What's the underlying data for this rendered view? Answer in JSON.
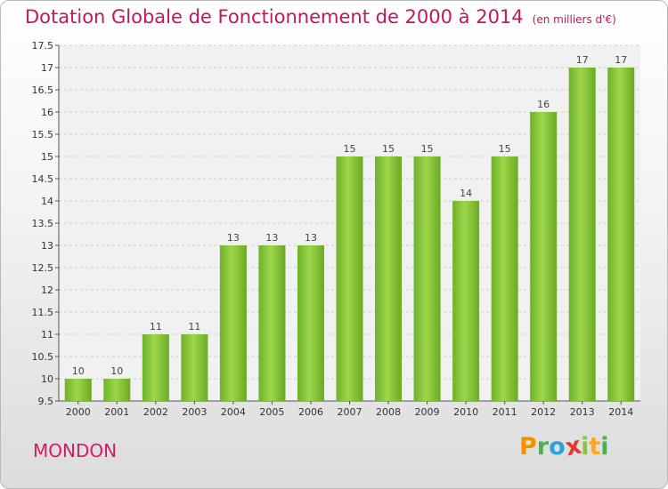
{
  "chart_data": {
    "type": "bar",
    "title": "Dotation Globale de Fonctionnement de 2000 à 2014",
    "subtitle": "(en milliers d'€)",
    "categories": [
      "2000",
      "2001",
      "2002",
      "2003",
      "2004",
      "2005",
      "2006",
      "2007",
      "2008",
      "2009",
      "2010",
      "2011",
      "2012",
      "2013",
      "2014"
    ],
    "values": [
      10,
      10,
      11,
      11,
      13,
      13,
      13,
      15,
      15,
      15,
      14,
      15,
      16,
      17,
      17
    ],
    "data_labels": [
      "10",
      "10",
      "11",
      "11",
      "13",
      "13",
      "13",
      "15",
      "15",
      "15",
      "14",
      "15",
      "16",
      "17",
      "17"
    ],
    "ylim": [
      9.5,
      17.5
    ],
    "yticks": [
      "9.5",
      "10",
      "10.5",
      "11",
      "11.5",
      "12",
      "12.5",
      "13",
      "13.5",
      "14",
      "14.5",
      "15",
      "15.5",
      "16",
      "16.5",
      "17",
      "17.5"
    ],
    "grid": true,
    "bar_color": "#7dc12e",
    "bar_color_light": "#a2d94f"
  },
  "place_name": "MONDON",
  "logo": {
    "letters": [
      "P",
      "r",
      "o",
      "x",
      "i",
      "t",
      "i"
    ],
    "colors": [
      "#f39200",
      "#4caf50",
      "#29a3d8",
      "#e53935",
      "#8bc34a",
      "#f9a825",
      "#4caf50"
    ]
  }
}
